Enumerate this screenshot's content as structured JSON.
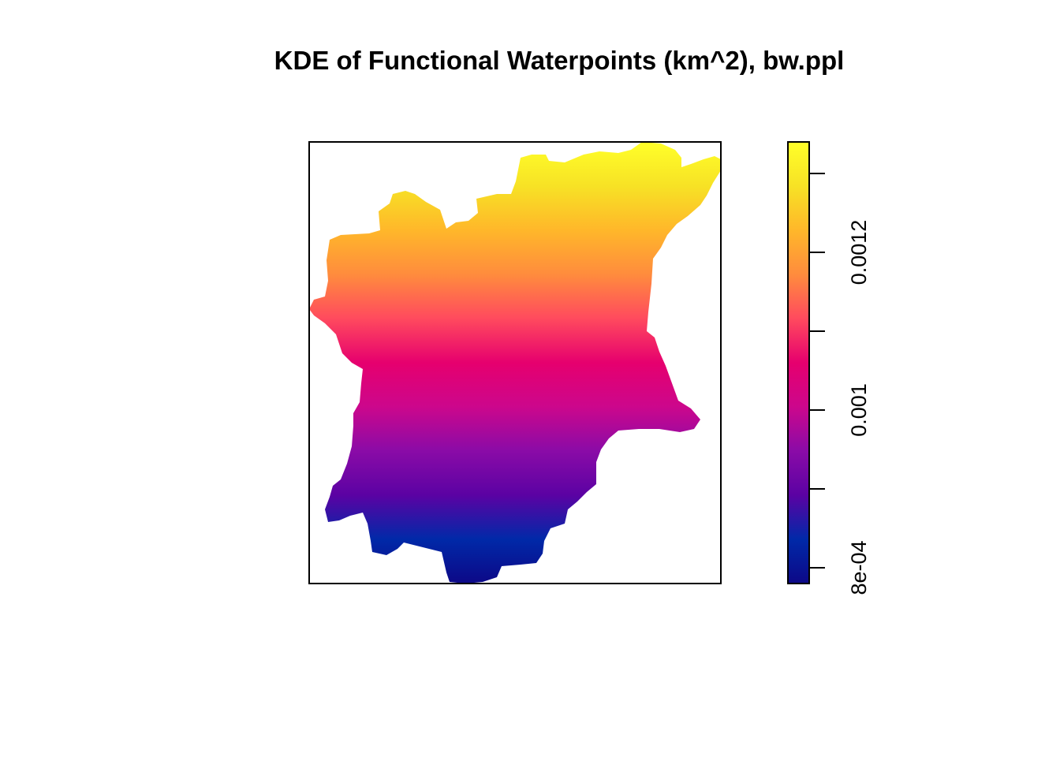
{
  "chart_data": {
    "type": "heatmap",
    "title": "KDE of Functional Waterpoints (km^2), bw.ppl",
    "xlabel": "",
    "ylabel": "",
    "axes_shown": false,
    "value_field": "density",
    "gradient_direction": "density increases from south (bottom) to north (top)",
    "value_range": [
      0.00078,
      0.00134
    ],
    "colorbar": {
      "position": "right",
      "palette": "plasma",
      "colors": [
        "#0D0887",
        "#0029A8",
        "#5B02A3",
        "#8A0BA7",
        "#CC078C",
        "#E6006E",
        "#FF4A5E",
        "#FF8C3D",
        "#FFB72A",
        "#F7E225",
        "#FFFF29"
      ],
      "major_ticks": [
        0.0008,
        0.001,
        0.0012
      ],
      "minor_ticks": [
        0.0009,
        0.0011,
        0.0013
      ],
      "tick_labels": [
        "8e-04",
        "0.001",
        "0.0012"
      ]
    },
    "sample_points": [
      {
        "region": "north",
        "density": 0.00132
      },
      {
        "region": "north-central",
        "density": 0.0012
      },
      {
        "region": "central",
        "density": 0.001
      },
      {
        "region": "south-central",
        "density": 0.0009
      },
      {
        "region": "south",
        "density": 0.0008
      }
    ]
  }
}
